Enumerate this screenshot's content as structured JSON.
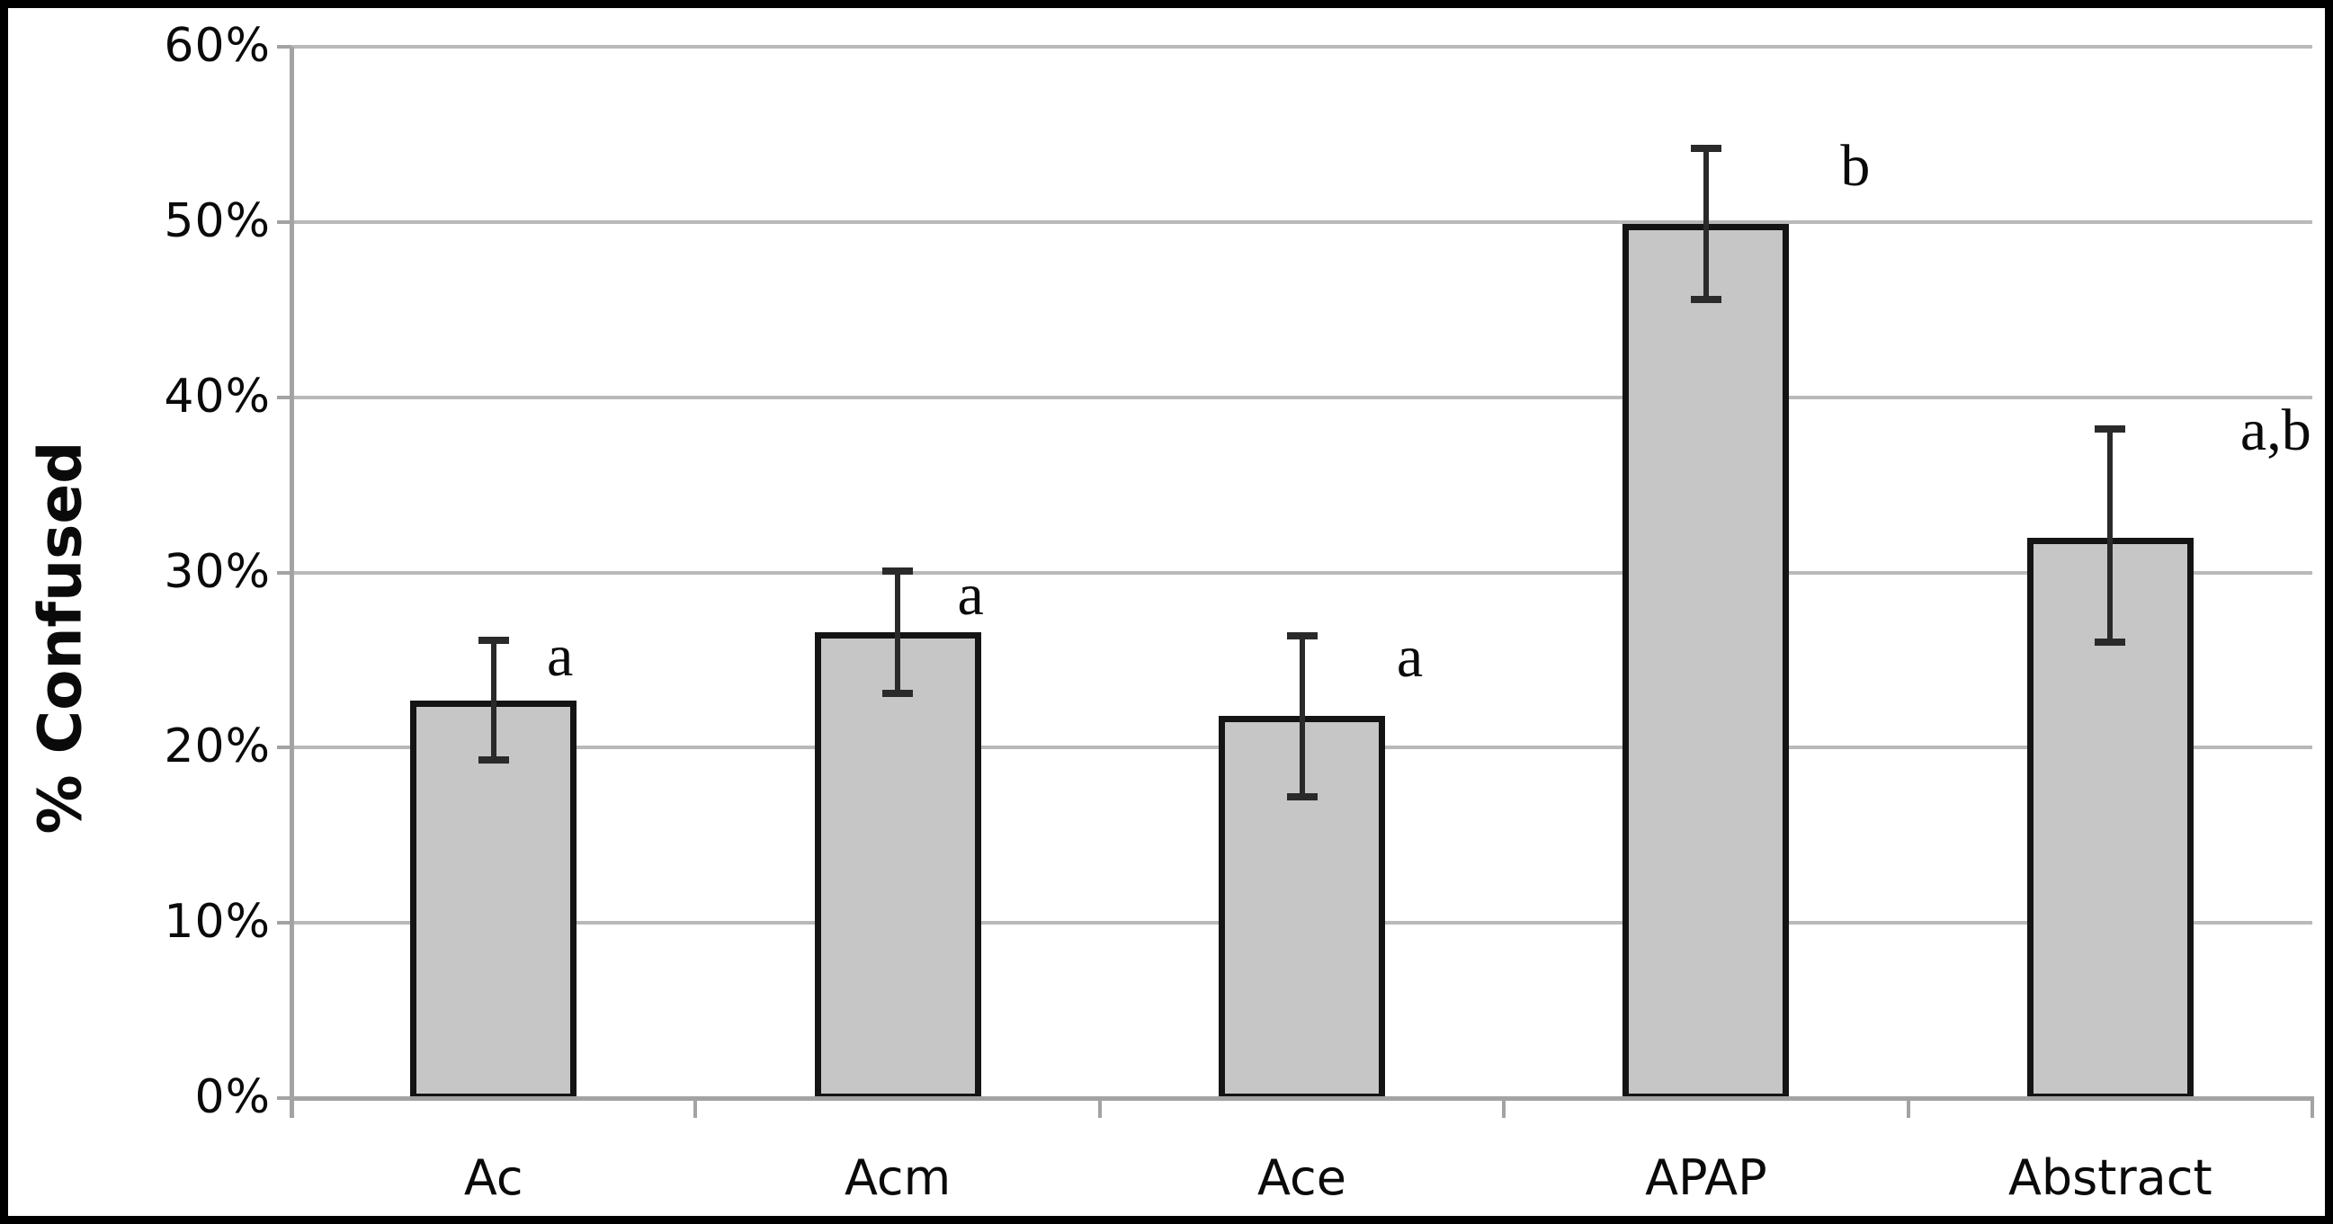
{
  "figure": {
    "ylabel": "% Confused",
    "background_color": "#ffffff",
    "frame_color": "#000000"
  },
  "chart_data": {
    "type": "bar",
    "title": "",
    "xlabel": "",
    "ylabel": "% Confused",
    "categories": [
      "Ac",
      "Acm",
      "Ace",
      "APAP",
      "Abstract"
    ],
    "values": [
      22.7,
      26.6,
      21.8,
      49.9,
      32.0
    ],
    "error_high": [
      26.1,
      30.1,
      26.4,
      54.2,
      38.2
    ],
    "error_low": [
      19.3,
      23.1,
      17.2,
      45.6,
      26.0
    ],
    "sig_letters": [
      "a",
      "a",
      "a",
      "b",
      "a,b"
    ],
    "unit": "%",
    "ylim": [
      0,
      60
    ],
    "ytick_values": [
      0,
      10,
      20,
      30,
      40,
      50,
      60
    ],
    "ytick_labels": [
      "0%",
      "10%",
      "20%",
      "30%",
      "40%",
      "50%",
      "60%"
    ],
    "grid": true,
    "legend": "none",
    "bar_fill_color": "#c6c6c6",
    "bar_border_color": "#141414",
    "gridline_color": "#b9b9b9",
    "axis_color": "#a3a3a3",
    "error_bar_color": "#2a2a2a",
    "text_color": "#0a0a0a"
  }
}
